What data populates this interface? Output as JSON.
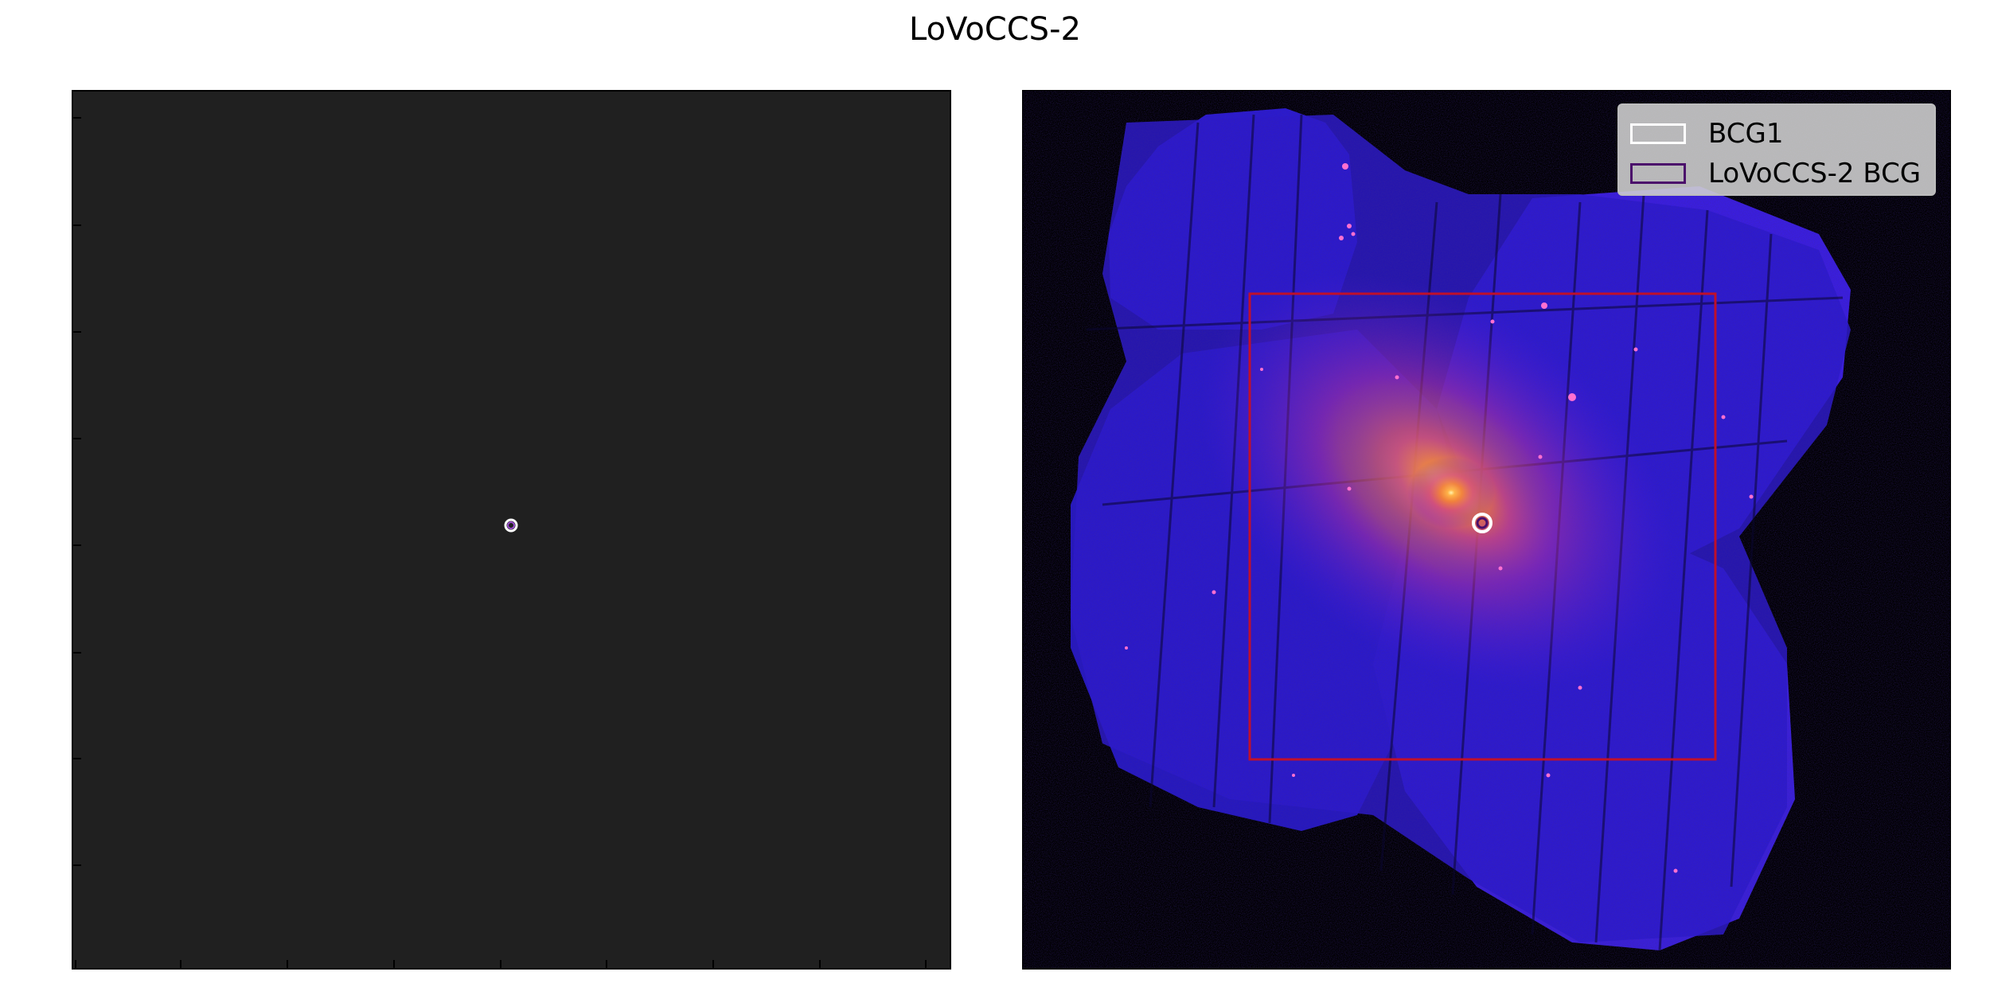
{
  "figure": {
    "title": "LoVoCCS-2"
  },
  "left_panel": {
    "name": "source-marker-panel",
    "background": "#202020",
    "marker_color": "#f0d8f5"
  },
  "right_panel": {
    "name": "xray-image-panel",
    "colormap": "plasma-on-black",
    "region_box_color": "#c0102a",
    "legend": {
      "items": [
        {
          "label": "BCG1",
          "edge_color": "#ffffff"
        },
        {
          "label": "LoVoCCS-2 BCG",
          "edge_color": "#4b0f6b"
        }
      ],
      "position": "top-right"
    }
  }
}
